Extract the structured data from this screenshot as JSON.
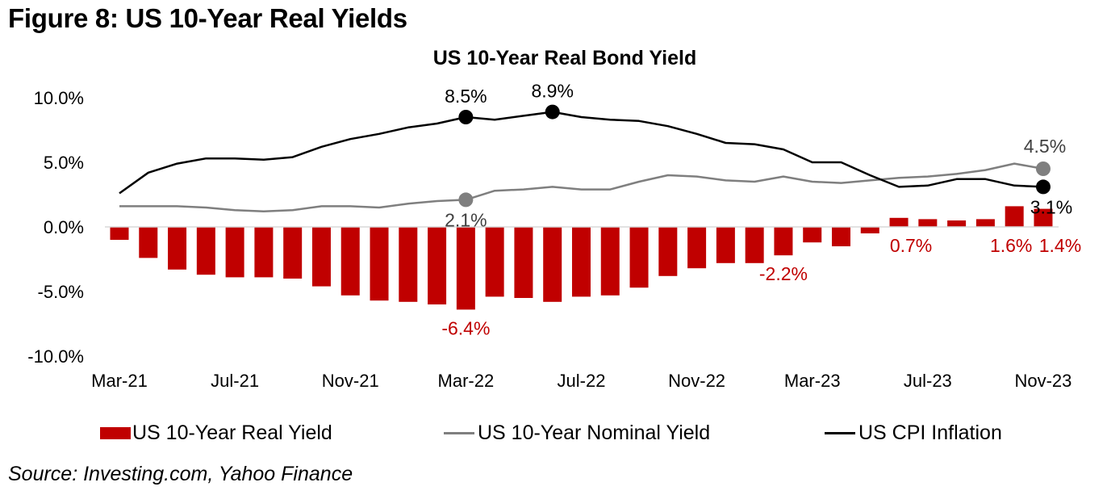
{
  "figure_title": "Figure 8: US 10-Year Real Yields",
  "source": "Source: Investing.com, Yahoo Finance",
  "colors": {
    "real_yield": "#c00000",
    "nominal_yield": "#7f7f7f",
    "cpi": "#000000",
    "zero_line": "#d9d9d9"
  },
  "chart_data": {
    "type": "bar+line",
    "title": "US 10-Year Real Bond Yield",
    "xlabel": "",
    "ylabel": "",
    "ylim": [
      -10,
      10
    ],
    "yticks": [
      10,
      5,
      0,
      -5,
      -10
    ],
    "ytick_labels": [
      "10.0%",
      "5.0%",
      "0.0%",
      "-5.0%",
      "-10.0%"
    ],
    "grid": false,
    "legend_position": "bottom",
    "categories": [
      "Mar-21",
      "Apr-21",
      "May-21",
      "Jun-21",
      "Jul-21",
      "Aug-21",
      "Sep-21",
      "Oct-21",
      "Nov-21",
      "Dec-21",
      "Jan-22",
      "Feb-22",
      "Mar-22",
      "Apr-22",
      "May-22",
      "Jun-22",
      "Jul-22",
      "Aug-22",
      "Sep-22",
      "Oct-22",
      "Nov-22",
      "Dec-22",
      "Jan-23",
      "Feb-23",
      "Mar-23",
      "Apr-23",
      "May-23",
      "Jun-23",
      "Jul-23",
      "Aug-23",
      "Sep-23",
      "Oct-23",
      "Nov-23"
    ],
    "xtick_labels": [
      "Mar-21",
      "Jul-21",
      "Nov-21",
      "Mar-22",
      "Jul-22",
      "Nov-22",
      "Mar-23",
      "Jul-23",
      "Nov-23"
    ],
    "xtick_every": 4,
    "series": [
      {
        "name": "US 10-Year Real Yield",
        "type": "bar",
        "values": [
          -1.0,
          -2.4,
          -3.3,
          -3.7,
          -3.9,
          -3.9,
          -4.0,
          -4.6,
          -5.3,
          -5.7,
          -5.8,
          -6.0,
          -6.4,
          -5.4,
          -5.5,
          -5.8,
          -5.4,
          -5.3,
          -4.7,
          -3.8,
          -3.2,
          -2.8,
          -2.8,
          -2.2,
          -1.2,
          -1.5,
          -0.5,
          0.7,
          0.6,
          0.5,
          0.6,
          1.6,
          1.4
        ]
      },
      {
        "name": "US 10-Year Nominal Yield",
        "type": "line",
        "values": [
          1.6,
          1.6,
          1.6,
          1.5,
          1.3,
          1.2,
          1.3,
          1.6,
          1.6,
          1.5,
          1.8,
          2.0,
          2.1,
          2.8,
          2.9,
          3.1,
          2.9,
          2.9,
          3.5,
          4.0,
          3.9,
          3.6,
          3.5,
          3.9,
          3.5,
          3.4,
          3.6,
          3.8,
          3.9,
          4.1,
          4.4,
          4.9,
          4.5
        ]
      },
      {
        "name": "US CPI Inflation",
        "type": "line",
        "values": [
          2.6,
          4.2,
          4.9,
          5.3,
          5.3,
          5.2,
          5.4,
          6.2,
          6.8,
          7.2,
          7.7,
          8.0,
          8.5,
          8.3,
          8.6,
          8.9,
          8.5,
          8.3,
          8.2,
          7.8,
          7.2,
          6.5,
          6.4,
          6.0,
          5.0,
          5.0,
          4.0,
          3.1,
          3.2,
          3.7,
          3.7,
          3.2,
          3.1
        ]
      }
    ],
    "annotations": [
      {
        "series": 2,
        "index": 12,
        "text": "8.5%",
        "marker": true
      },
      {
        "series": 2,
        "index": 15,
        "text": "8.9%",
        "marker": true
      },
      {
        "series": 1,
        "index": 12,
        "text": "2.1%",
        "marker": true
      },
      {
        "series": 1,
        "index": 32,
        "text": "4.5%",
        "marker": true
      },
      {
        "series": 2,
        "index": 32,
        "text": "3.1%",
        "marker": true
      },
      {
        "series": 0,
        "index": 12,
        "text": "-6.4%",
        "marker": false
      },
      {
        "series": 0,
        "index": 23,
        "text": "-2.2%",
        "marker": false
      },
      {
        "series": 0,
        "index": 27,
        "text": "0.7%",
        "marker": false
      },
      {
        "series": 0,
        "index": 31,
        "text": "1.6%",
        "marker": false
      },
      {
        "series": 0,
        "index": 32,
        "text": "1.4%",
        "marker": false
      }
    ]
  }
}
